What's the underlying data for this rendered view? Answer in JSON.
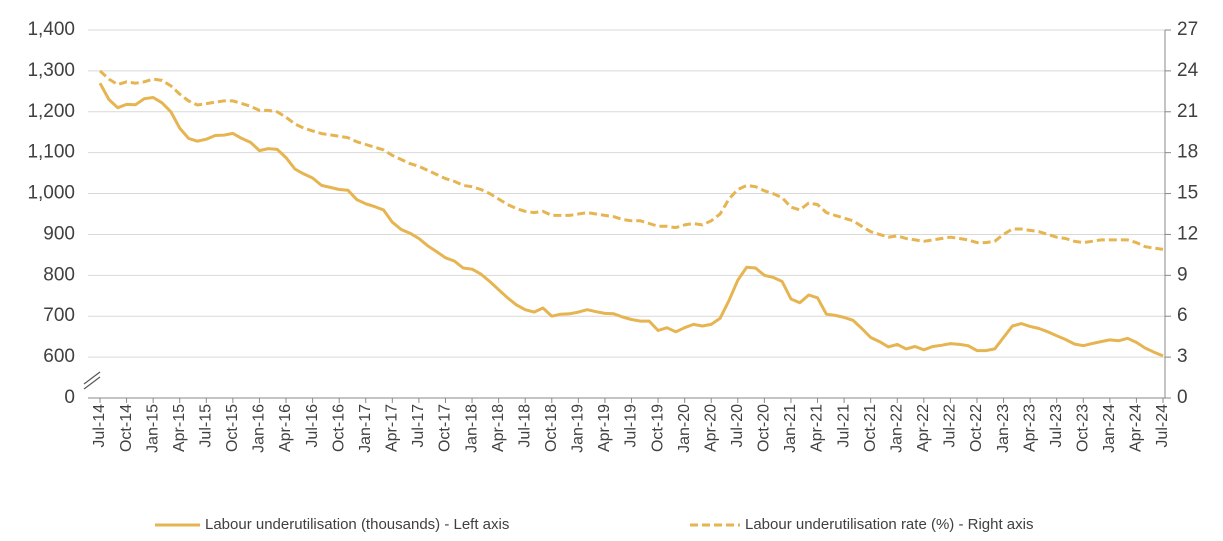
{
  "chart_data": {
    "type": "line",
    "categories": [
      "Jul-14",
      null,
      null,
      "Oct-14",
      null,
      null,
      "Jan-15",
      null,
      null,
      "Apr-15",
      null,
      null,
      "Jul-15",
      null,
      null,
      "Oct-15",
      null,
      null,
      "Jan-16",
      null,
      null,
      "Apr-16",
      null,
      null,
      "Jul-16",
      null,
      null,
      "Oct-16",
      null,
      null,
      "Jan-17",
      null,
      null,
      "Apr-17",
      null,
      null,
      "Jul-17",
      null,
      null,
      "Oct-17",
      null,
      null,
      "Jan-18",
      null,
      null,
      "Apr-18",
      null,
      null,
      "Jul-18",
      null,
      null,
      "Oct-18",
      null,
      null,
      "Jan-19",
      null,
      null,
      "Apr-19",
      null,
      null,
      "Jul-19",
      null,
      null,
      "Oct-19",
      null,
      null,
      "Jan-20",
      null,
      null,
      "Apr-20",
      null,
      null,
      "Jul-20",
      null,
      null,
      "Oct-20",
      null,
      null,
      "Jan-21",
      null,
      null,
      "Apr-21",
      null,
      null,
      "Jul-21",
      null,
      null,
      "Oct-21",
      null,
      null,
      "Jan-22",
      null,
      null,
      "Apr-22",
      null,
      null,
      "Jul-22",
      null,
      null,
      "Oct-22",
      null,
      null,
      "Jan-23",
      null,
      null,
      "Apr-23",
      null,
      null,
      "Jul-23",
      null,
      null,
      "Oct-23",
      null,
      null,
      "Jan-24",
      null,
      null,
      "Apr-24",
      null,
      null,
      "Jul-24"
    ],
    "series": [
      {
        "name": "Labour underutilisation (thousands) - Left axis",
        "color": "#e6b450",
        "dash": false,
        "axis": "y",
        "values": [
          1270,
          1230,
          1210,
          1218,
          1217,
          1232,
          1235,
          1222,
          1200,
          1160,
          1135,
          1128,
          1133,
          1142,
          1143,
          1147,
          1135,
          1125,
          1105,
          1110,
          1108,
          1088,
          1060,
          1048,
          1038,
          1020,
          1015,
          1010,
          1008,
          985,
          975,
          968,
          960,
          930,
          912,
          903,
          890,
          872,
          858,
          843,
          835,
          818,
          815,
          803,
          785,
          765,
          745,
          728,
          716,
          710,
          720,
          700,
          705,
          706,
          710,
          716,
          711,
          707,
          706,
          698,
          692,
          688,
          688,
          665,
          672,
          662,
          672,
          680,
          676,
          680,
          695,
          738,
          788,
          820,
          818,
          800,
          795,
          785,
          742,
          733,
          752,
          745,
          705,
          702,
          697,
          690,
          670,
          648,
          638,
          625,
          631,
          620,
          626,
          618,
          626,
          629,
          633,
          631,
          628,
          616,
          616,
          620,
          648,
          676,
          682,
          675,
          670,
          662,
          652,
          643,
          632,
          628,
          633,
          638,
          642,
          640,
          646,
          636,
          622,
          612,
          603
        ]
      },
      {
        "name": "Labour underutilisation rate (%) - Right axis",
        "color": "#e6b450",
        "dash": true,
        "axis": "y2",
        "values": [
          24.0,
          23.4,
          23.0,
          23.2,
          23.1,
          23.2,
          23.4,
          23.3,
          22.9,
          22.3,
          21.8,
          21.5,
          21.6,
          21.7,
          21.8,
          21.8,
          21.6,
          21.4,
          21.1,
          21.1,
          21.0,
          20.6,
          20.1,
          19.8,
          19.6,
          19.4,
          19.3,
          19.2,
          19.1,
          18.8,
          18.6,
          18.4,
          18.2,
          17.8,
          17.5,
          17.2,
          17.0,
          16.7,
          16.4,
          16.1,
          15.9,
          15.6,
          15.5,
          15.3,
          15.0,
          14.6,
          14.2,
          13.9,
          13.7,
          13.6,
          13.7,
          13.4,
          13.4,
          13.4,
          13.5,
          13.6,
          13.5,
          13.4,
          13.3,
          13.1,
          13.0,
          13.0,
          12.8,
          12.6,
          12.6,
          12.5,
          12.7,
          12.8,
          12.7,
          13.0,
          13.5,
          14.6,
          15.3,
          15.6,
          15.5,
          15.2,
          15.0,
          14.7,
          14.0,
          13.8,
          14.3,
          14.2,
          13.6,
          13.4,
          13.2,
          13.0,
          12.6,
          12.2,
          12.0,
          11.8,
          11.9,
          11.7,
          11.6,
          11.5,
          11.6,
          11.7,
          11.8,
          11.7,
          11.6,
          11.4,
          11.4,
          11.5,
          12.0,
          12.4,
          12.4,
          12.3,
          12.2,
          12.0,
          11.8,
          11.7,
          11.5,
          11.4,
          11.5,
          11.6,
          11.6,
          11.6,
          11.6,
          11.4,
          11.1,
          11.0,
          10.9
        ]
      }
    ],
    "ylim": [
      0,
      1400
    ],
    "yticks": [
      0,
      600,
      700,
      800,
      900,
      {
        "value": 1000,
        "label": "1,000"
      },
      {
        "value": 1100,
        "label": "1,100"
      },
      {
        "value": 1200,
        "label": "1,200"
      },
      {
        "value": 1300,
        "label": "1,300"
      },
      {
        "value": 1400,
        "label": "1,400"
      }
    ],
    "y_axis_break": true,
    "y2lim": [
      0,
      27
    ],
    "y2ticks": [
      0,
      3,
      6,
      9,
      12,
      15,
      18,
      21,
      24,
      27
    ],
    "grid": true,
    "legend": "bottom"
  }
}
